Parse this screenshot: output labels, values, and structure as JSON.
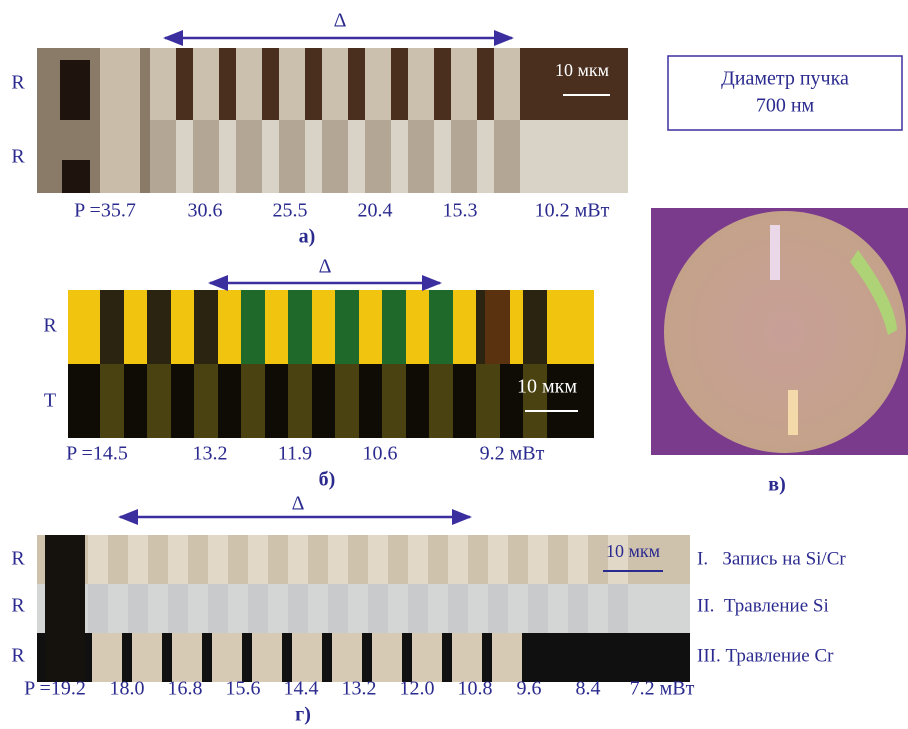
{
  "panels": {
    "a": {
      "delta": "Δ",
      "row_labels": [
        "R",
        "R"
      ],
      "scale": "10 мкм",
      "power_labels": [
        "P =35.7",
        "30.6",
        "25.5",
        "20.4",
        "15.3",
        "10.2 мВт"
      ],
      "caption": "а)"
    },
    "info": {
      "lines": [
        "Диаметр пучка",
        "700 нм"
      ]
    },
    "b": {
      "delta": "Δ",
      "row_labels": [
        "R",
        "T"
      ],
      "scale": "10 мкм",
      "power_labels": [
        "P =14.5",
        "13.2",
        "11.9",
        "10.6",
        "9.2 мВт"
      ],
      "caption": "б)"
    },
    "c": {
      "caption": "в)"
    },
    "d": {
      "delta": "Δ",
      "row_labels": [
        "R",
        "R",
        "R"
      ],
      "scale": "10 мкм",
      "power_labels": [
        "P =19.2",
        "18.0",
        "16.8",
        "15.6",
        "14.4",
        "13.2",
        "12.0",
        "10.8",
        "9.6",
        "8.4",
        "7.2 мВт"
      ],
      "caption": "г)",
      "legend": [
        "I.   Запись на Si/Cr",
        "II.  Травление Si",
        "III. Травление Cr"
      ]
    }
  }
}
